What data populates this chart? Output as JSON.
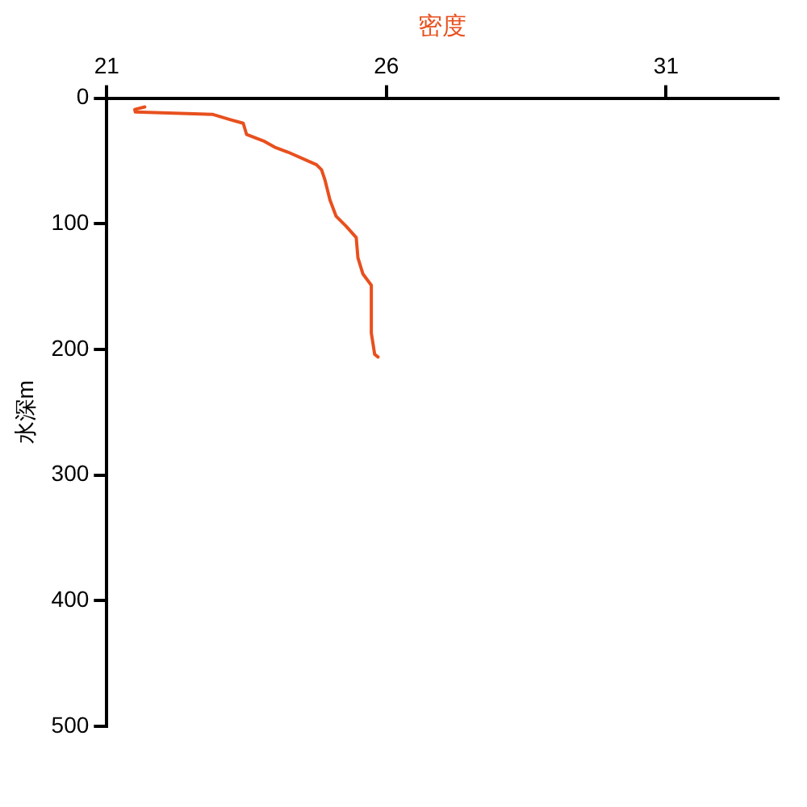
{
  "chart_data": {
    "type": "line",
    "xlabel": "密度",
    "ylabel": "水深m",
    "xlim": [
      21,
      33
    ],
    "xticks": [
      21,
      26,
      31
    ],
    "ylim": [
      500,
      0
    ],
    "yticks": [
      0,
      100,
      200,
      300,
      400,
      500
    ],
    "grid": false,
    "legend": false,
    "marker": "none",
    "line_style": "solid",
    "series": [
      {
        "color": "#e8501e",
        "x": [
          21.68,
          21.5,
          21.51,
          22.9,
          23.2,
          23.44,
          23.5,
          23.8,
          24.0,
          24.24,
          24.75,
          24.84,
          24.9,
          24.99,
          25.1,
          25.28,
          25.46,
          25.49,
          25.58,
          25.73,
          25.73,
          25.79,
          25.85
        ],
        "values": [
          7,
          9,
          11,
          13,
          17,
          20,
          29,
          34,
          39,
          43,
          53,
          57,
          65,
          81,
          94,
          102,
          111,
          127,
          140,
          149,
          187,
          204,
          206
        ]
      }
    ]
  }
}
